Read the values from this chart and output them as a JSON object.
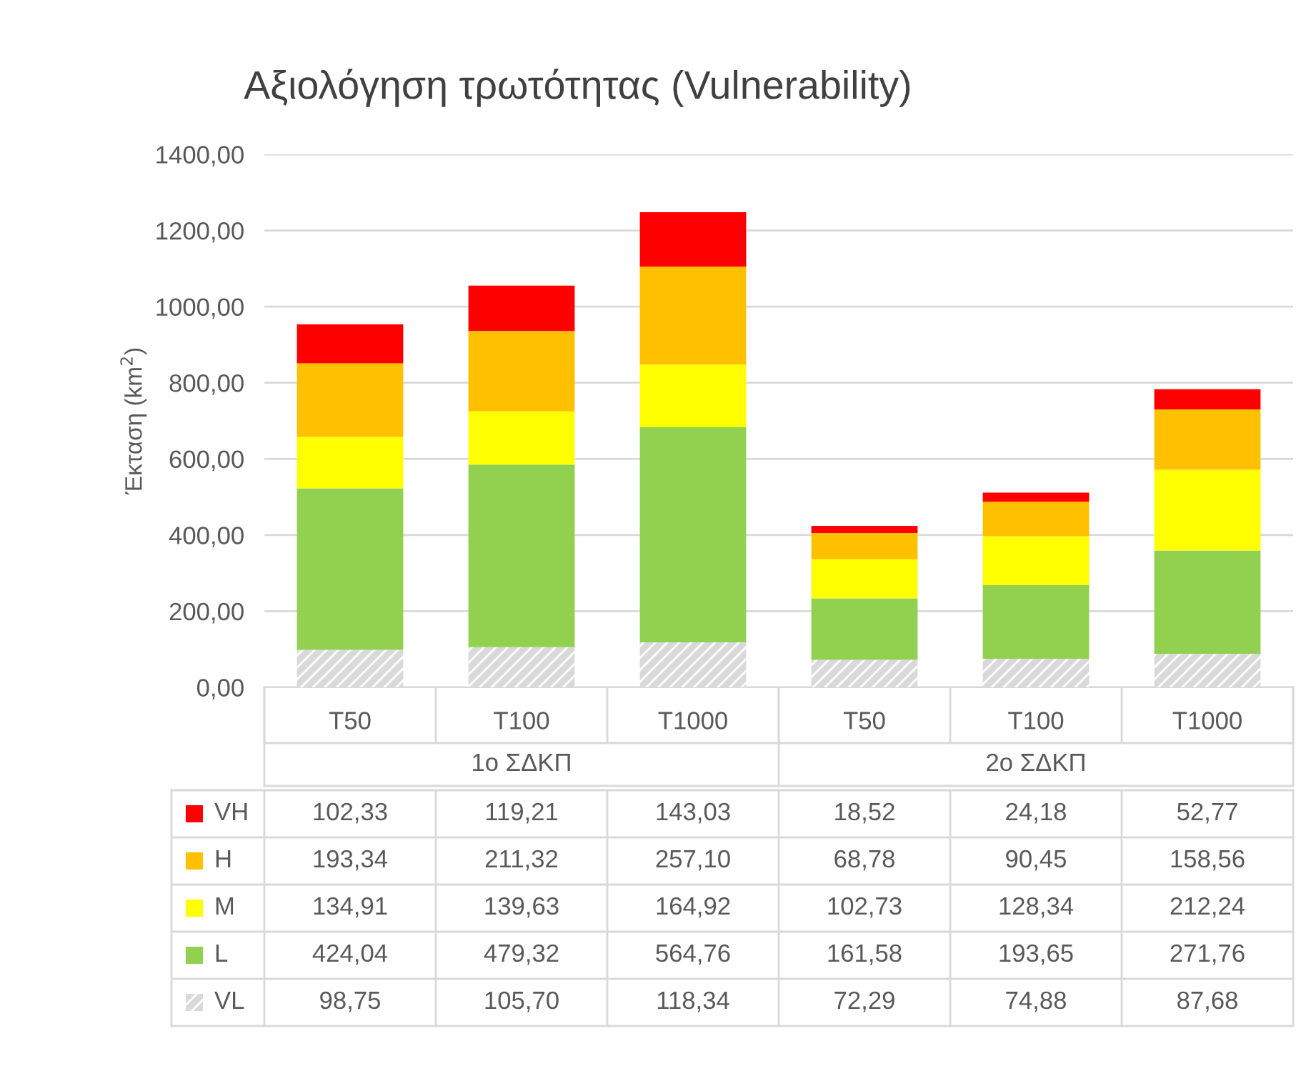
{
  "chart_data": {
    "type": "bar",
    "stacked": true,
    "title": "Αξιολόγηση τρωτότητας (Vulnerability)",
    "ylabel": "Έκταση (km$^{2}$)",
    "categories": [
      "T50",
      "T100",
      "T1000",
      "T50",
      "T100",
      "T1000"
    ],
    "annotations": [
      "1ο ΣΔΚΠ",
      "2ο ΣΔΚΠ"
    ],
    "series": [
      {
        "name": "VL",
        "color": "#d9d9d9",
        "values": [
          98.75,
          105.7,
          118.34,
          72.29,
          74.88,
          87.68
        ],
        "value_labels": [
          "98,75",
          "105,70",
          "118,34",
          "72,29",
          "74,88",
          "87,68"
        ]
      },
      {
        "name": "L",
        "color": "#92d050",
        "values": [
          424.04,
          479.32,
          564.76,
          161.58,
          193.65,
          271.76
        ],
        "value_labels": [
          "424,04",
          "479,32",
          "564,76",
          "161,58",
          "193,65",
          "271,76"
        ]
      },
      {
        "name": "M",
        "color": "#ffff00",
        "values": [
          134.91,
          139.63,
          164.92,
          102.73,
          128.34,
          212.24
        ],
        "value_labels": [
          "134,91",
          "139,63",
          "164,92",
          "102,73",
          "128,34",
          "212,24"
        ]
      },
      {
        "name": "H",
        "color": "#ffc000",
        "values": [
          193.34,
          211.32,
          257.1,
          68.78,
          90.45,
          158.56
        ],
        "value_labels": [
          "193,34",
          "211,32",
          "257,10",
          "68,78",
          "90,45",
          "158,56"
        ]
      },
      {
        "name": "VH",
        "color": "#ff0000",
        "values": [
          102.33,
          119.21,
          143.03,
          18.52,
          24.18,
          52.77
        ],
        "value_labels": [
          "102,33",
          "119,21",
          "143,03",
          "18,52",
          "24,18",
          "52,77"
        ]
      }
    ],
    "ylim": [
      0,
      1400
    ],
    "yticks": [
      {
        "value": 0,
        "label": "0,00"
      },
      {
        "value": 200,
        "label": "200,00"
      },
      {
        "value": 400,
        "label": "400,00"
      },
      {
        "value": 600,
        "label": "600,00"
      },
      {
        "value": 800,
        "label": "800,00"
      },
      {
        "value": 1000,
        "label": "1000,00"
      },
      {
        "value": 1200,
        "label": "1200,00"
      },
      {
        "value": 1400,
        "label": "1400,00"
      }
    ],
    "grid": "y",
    "legend": "bottom"
  }
}
